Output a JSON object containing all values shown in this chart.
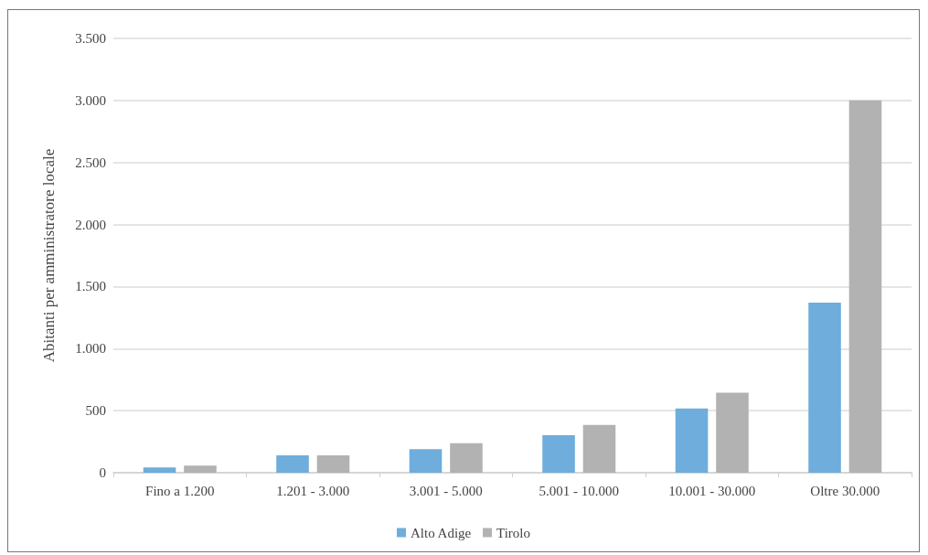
{
  "chart_data": {
    "type": "bar",
    "ylabel": "Abitanti per amministratore locale",
    "categories": [
      "Fino a 1.200",
      "1.201 - 3.000",
      "3.001 - 5.000",
      "5.001 - 10.000",
      "10.001 - 30.000",
      "Oltre 30.000"
    ],
    "series": [
      {
        "name": "Alto Adige",
        "color": "#6eaddc",
        "values": [
          43,
          140,
          190,
          302,
          518,
          1370
        ]
      },
      {
        "name": "Tirolo",
        "color": "#b2b2b2",
        "values": [
          58,
          140,
          238,
          385,
          645,
          3000
        ]
      }
    ],
    "ylim": [
      0,
      3500
    ],
    "yticks": [
      {
        "value": 0,
        "label": "0"
      },
      {
        "value": 500,
        "label": "500"
      },
      {
        "value": 1000,
        "label": "1.000"
      },
      {
        "value": 1500,
        "label": "1.500"
      },
      {
        "value": 2000,
        "label": "2.000"
      },
      {
        "value": 2500,
        "label": "2.500"
      },
      {
        "value": 3000,
        "label": "3.000"
      },
      {
        "value": 3500,
        "label": "3.500"
      }
    ],
    "grid": "y",
    "legend": "bottom"
  }
}
